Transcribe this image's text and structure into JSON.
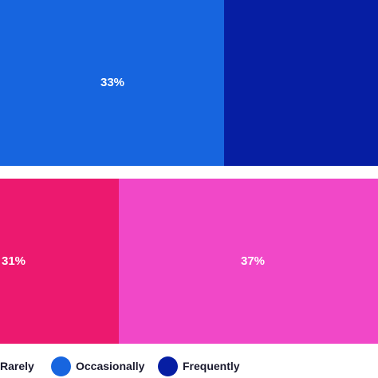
{
  "chart_data": {
    "type": "bar",
    "orientation": "horizontal",
    "stacked": true,
    "categories": [
      "",
      ""
    ],
    "series": [
      {
        "name": "Rarely",
        "values": [
          null,
          31
        ]
      },
      {
        "name": "Occasionally",
        "values": [
          33,
          37
        ]
      },
      {
        "name": "Frequently",
        "values": [
          null,
          null
        ]
      }
    ],
    "data_labels": [
      {
        "series": "Occasionally",
        "category_index": 0,
        "text": "33%"
      },
      {
        "series": "Rarely",
        "category_index": 1,
        "text": "31%"
      },
      {
        "series": "Occasionally",
        "category_index": 1,
        "text": "37%"
      }
    ],
    "colors": {
      "bar1": {
        "Occasionally": "#1765df",
        "Frequently": "#061ea3"
      },
      "bar2": {
        "Rarely": "#ec196f",
        "Occasionally": "#f148c8"
      }
    },
    "legend_placement": "bottom",
    "grid": false
  },
  "legend": [
    {
      "label": "Rarely",
      "color": ""
    },
    {
      "label": "Occasionally",
      "color": "#1765df"
    },
    {
      "label": "Frequently",
      "color": "#061ea3"
    }
  ]
}
